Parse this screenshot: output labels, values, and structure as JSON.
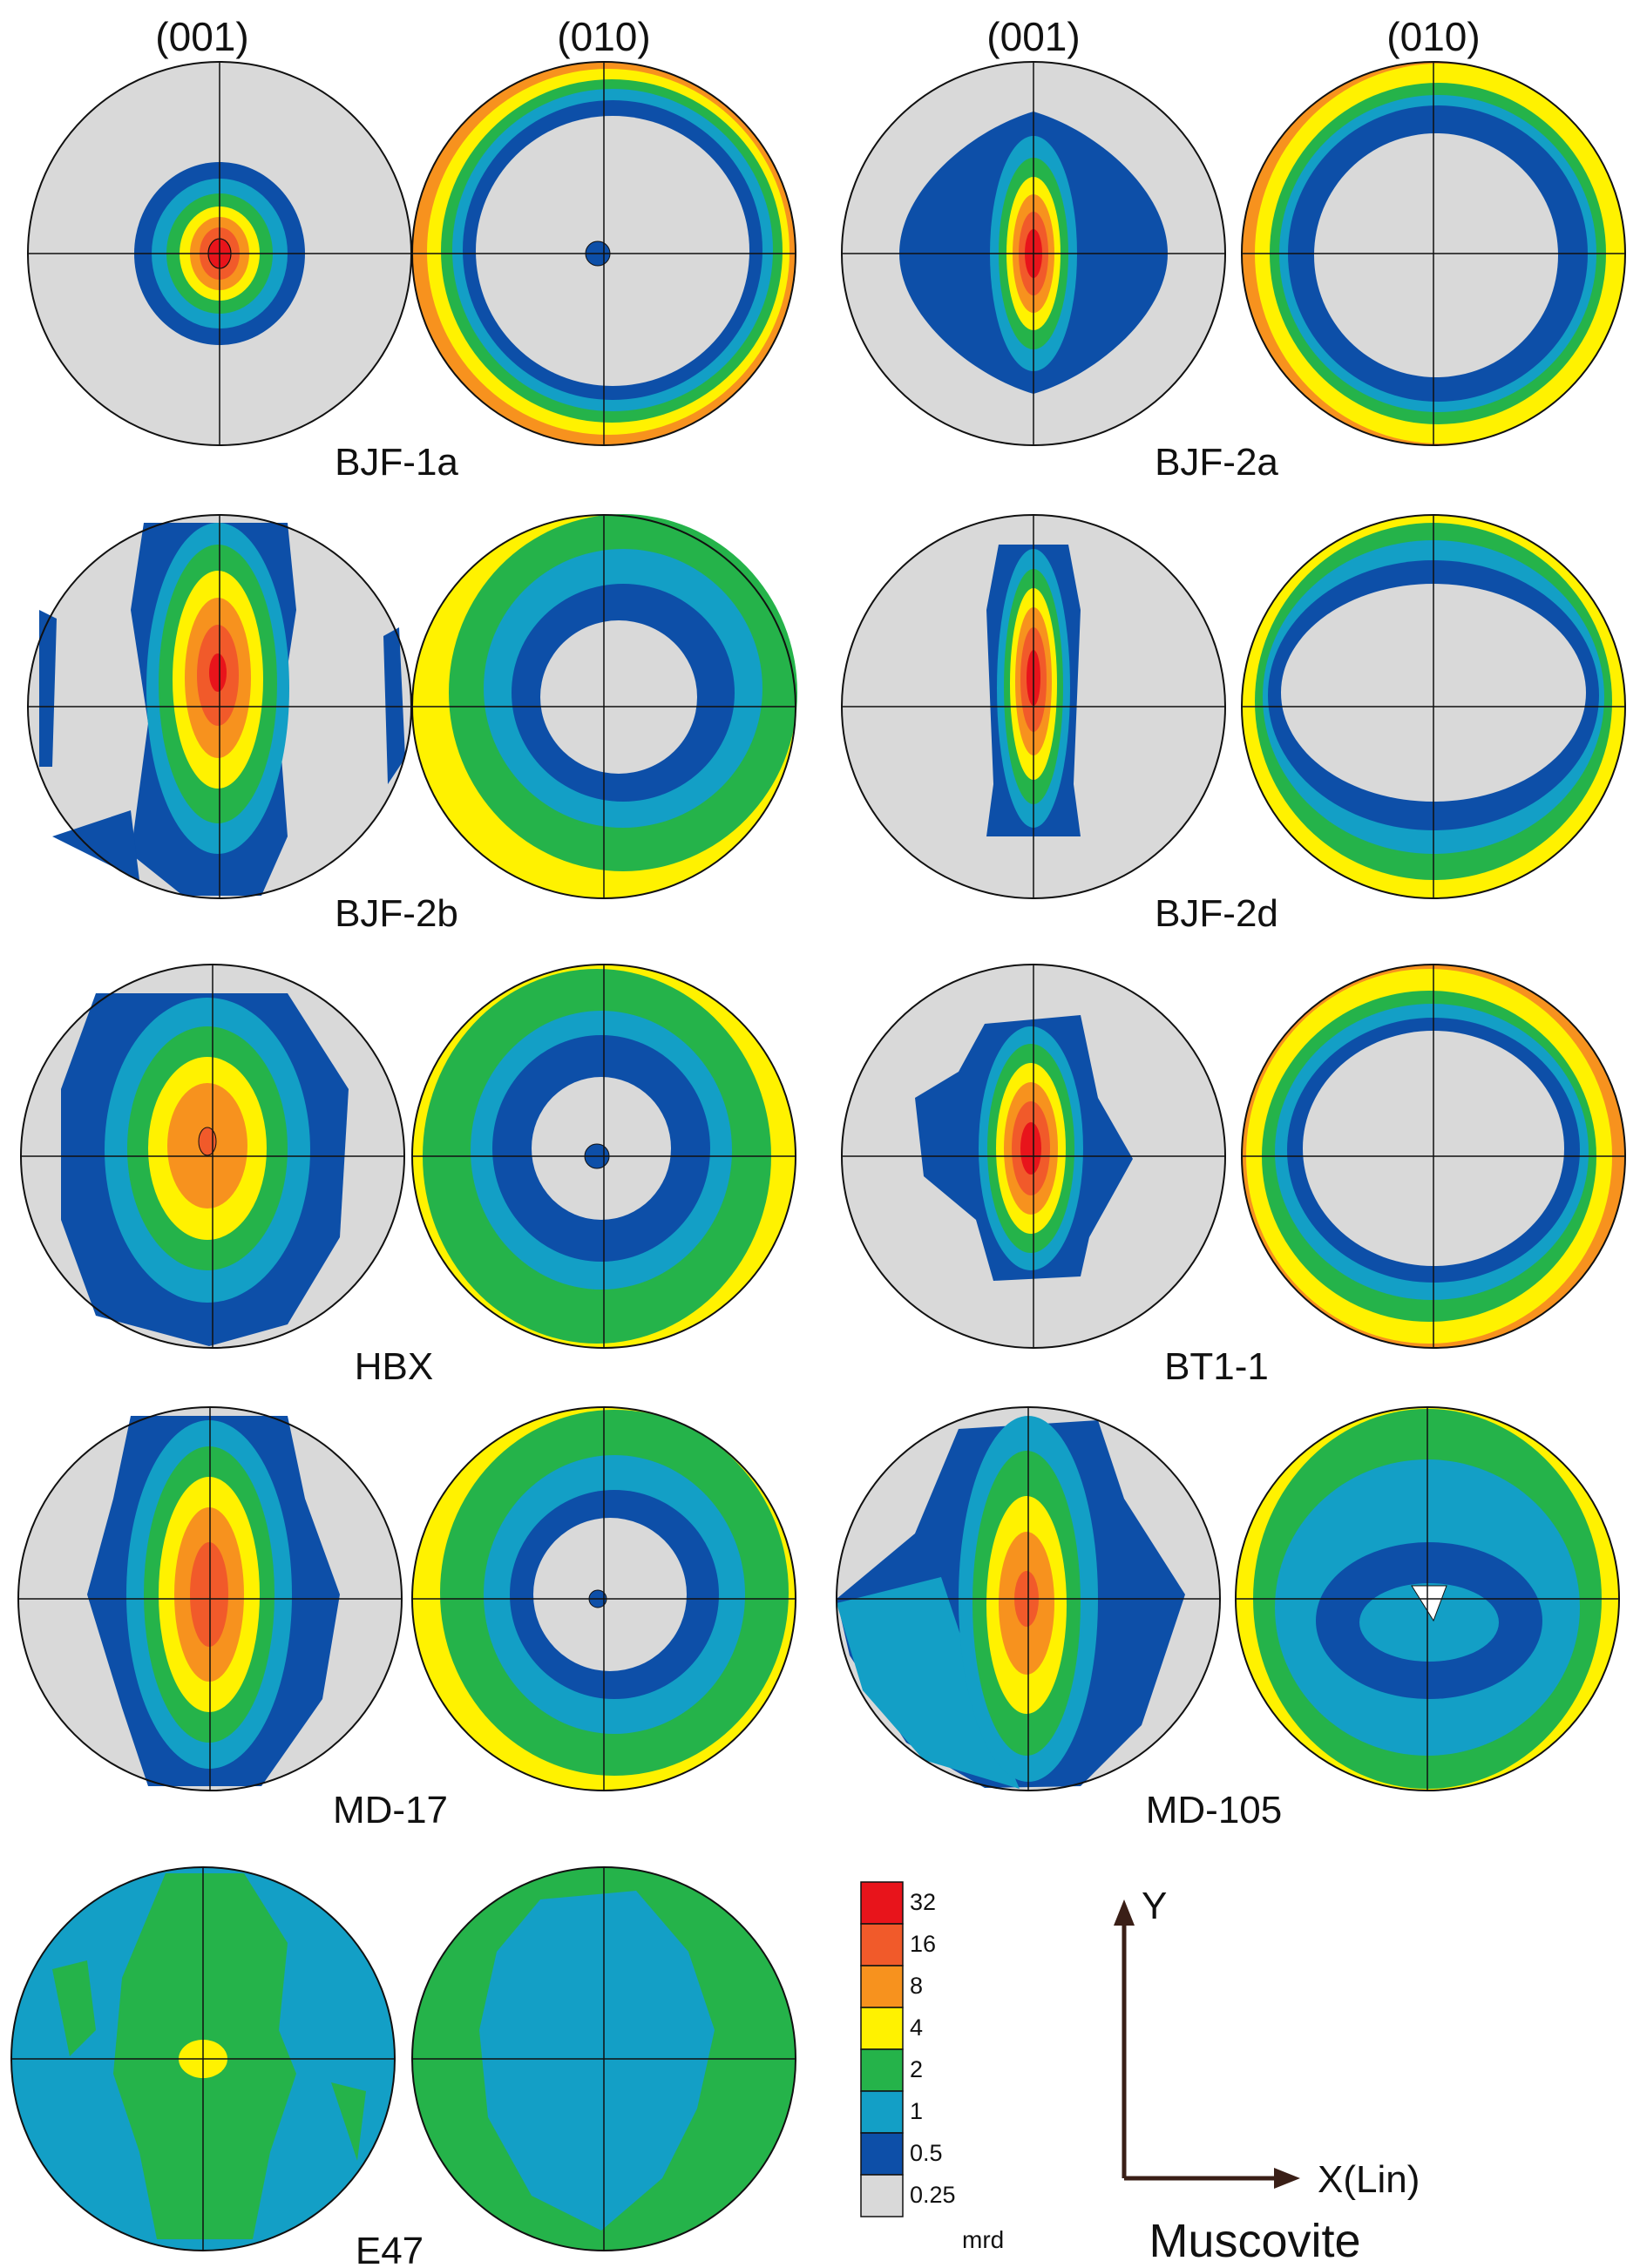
{
  "header": {
    "col1": "(001)",
    "col2": "(010)",
    "col3": "(001)",
    "col4": "(010)"
  },
  "samples": [
    {
      "label": "BJF-1a"
    },
    {
      "label": "BJF-2a"
    },
    {
      "label": "BJF-2b"
    },
    {
      "label": "BJF-2d"
    },
    {
      "label": "HBX"
    },
    {
      "label": "BT1-1"
    },
    {
      "label": "MD-17"
    },
    {
      "label": "MD-105"
    },
    {
      "label": "E47"
    }
  ],
  "legend": {
    "unit": "mrd",
    "levels": [
      {
        "label": "32",
        "color": "#e8141b"
      },
      {
        "label": "16",
        "color": "#f15a2a"
      },
      {
        "label": "8",
        "color": "#f7921e"
      },
      {
        "label": "4",
        "color": "#fff200"
      },
      {
        "label": "2",
        "color": "#25b34a"
      },
      {
        "label": "1",
        "color": "#139fc6"
      },
      {
        "label": "0.5",
        "color": "#0d4fa8"
      },
      {
        "label": "0.25",
        "color": "#d9d9d9"
      }
    ]
  },
  "axes": {
    "y_label": "Y",
    "x_label": "X(Lin)"
  },
  "mineral": "Muscovite",
  "colors": {
    "outline": "#111111",
    "background": "#ffffff",
    "arrow": "#3a1f17"
  }
}
